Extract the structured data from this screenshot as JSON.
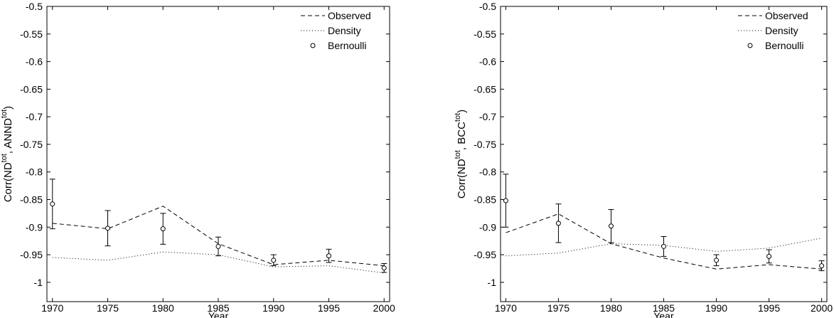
{
  "chart_data": [
    {
      "type": "line",
      "xlabel": "Year",
      "ylabel": [
        "Corr(ND",
        "tot",
        ", ANND",
        "tot",
        ")"
      ],
      "x": [
        1970,
        1975,
        1980,
        1985,
        1990,
        1995,
        2000
      ],
      "xlim": [
        1969.5,
        2000.5
      ],
      "xticks": [
        1970,
        1975,
        1980,
        1985,
        1990,
        1995,
        2000
      ],
      "ylim": [
        -1.035,
        -0.5
      ],
      "yticks": [
        -1,
        -0.95,
        -0.9,
        -0.85,
        -0.8,
        -0.75,
        -0.7,
        -0.65,
        -0.6,
        -0.55,
        -0.5
      ],
      "legend": "upper right",
      "series": [
        {
          "name": "Observed",
          "style": "dashed",
          "color": "#000000",
          "values": [
            -0.893,
            -0.903,
            -0.862,
            -0.93,
            -0.968,
            -0.96,
            -0.97
          ]
        },
        {
          "name": "Density",
          "style": "dotted",
          "color": "#000000",
          "values": [
            -0.955,
            -0.96,
            -0.945,
            -0.95,
            -0.972,
            -0.97,
            -0.983
          ]
        },
        {
          "name": "Bernoulli",
          "style": "marker",
          "color": "#000000",
          "values": [
            -0.858,
            -0.902,
            -0.903,
            -0.935,
            -0.96,
            -0.952,
            -0.974
          ],
          "errors": [
            0.045,
            0.032,
            0.028,
            0.017,
            0.01,
            0.012,
            0.008
          ]
        }
      ]
    },
    {
      "type": "line",
      "xlabel": "Year",
      "ylabel": [
        "Corr(ND",
        "tot",
        ", BCC",
        "tot",
        ")"
      ],
      "x": [
        1970,
        1975,
        1980,
        1985,
        1990,
        1995,
        2000
      ],
      "xlim": [
        1969.5,
        2000.5
      ],
      "xticks": [
        1970,
        1975,
        1980,
        1985,
        1990,
        1995,
        2000
      ],
      "ylim": [
        -1.035,
        -0.5
      ],
      "yticks": [
        -1,
        -0.95,
        -0.9,
        -0.85,
        -0.8,
        -0.75,
        -0.7,
        -0.65,
        -0.6,
        -0.55,
        -0.5
      ],
      "legend": "upper right",
      "series": [
        {
          "name": "Observed",
          "style": "dashed",
          "color": "#000000",
          "values": [
            -0.91,
            -0.876,
            -0.93,
            -0.956,
            -0.976,
            -0.968,
            -0.976
          ]
        },
        {
          "name": "Density",
          "style": "dotted",
          "color": "#000000",
          "values": [
            -0.952,
            -0.947,
            -0.93,
            -0.933,
            -0.944,
            -0.938,
            -0.92
          ]
        },
        {
          "name": "Bernoulli",
          "style": "marker",
          "color": "#000000",
          "values": [
            -0.852,
            -0.893,
            -0.898,
            -0.935,
            -0.96,
            -0.953,
            -0.97
          ],
          "errors": [
            0.048,
            0.035,
            0.03,
            0.018,
            0.01,
            0.012,
            0.009
          ]
        }
      ]
    }
  ]
}
